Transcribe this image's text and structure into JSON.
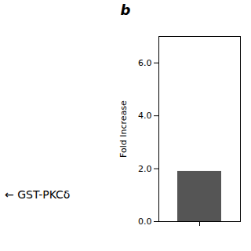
{
  "chart_data": {
    "type": "bar",
    "annotations": [
      "b",
      "← GST-PKCδ"
    ],
    "ylabel": "Fold Increase",
    "categories": [
      null
    ],
    "values": [
      1.9
    ],
    "color": "#555555",
    "ylim": [
      0,
      7
    ],
    "yticks": [
      0,
      2,
      4,
      6
    ],
    "grid": false
  }
}
